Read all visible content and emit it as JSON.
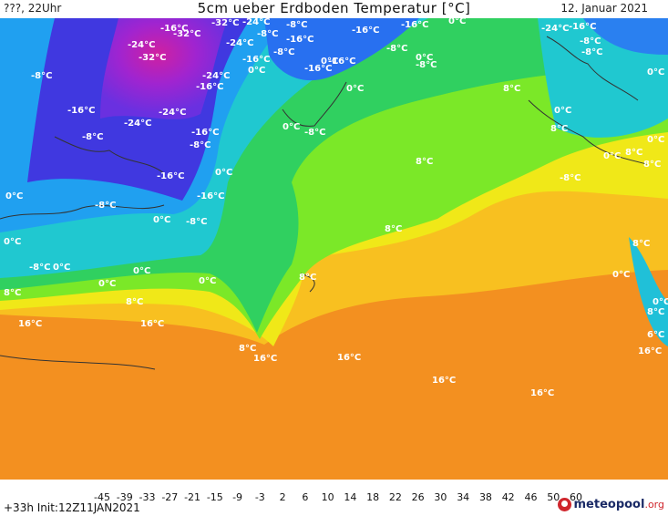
{
  "header": {
    "left": "???, 22Uhr",
    "title": "5cm ueber Erdboden Temperatur [°C]",
    "date": "12. Januar 2021"
  },
  "footer": {
    "run_info": "+33h Init:12Z11JAN2021",
    "brand_name": "meteopool",
    "brand_tld": ".org",
    "brand_icon": "meteopool-logo-icon"
  },
  "legend": {
    "ticks": [
      "-45",
      "-39",
      "-33",
      "-27",
      "-21",
      "-15",
      "-9",
      "-3",
      "2",
      "6",
      "10",
      "14",
      "18",
      "22",
      "26",
      "30",
      "34",
      "38",
      "42",
      "46",
      "50",
      "60"
    ]
  },
  "map_labels": [
    {
      "text": "-32°C"
    },
    {
      "text": "-24°C"
    },
    {
      "text": "-8°C"
    },
    {
      "text": "-16°C"
    },
    {
      "text": "-24°C"
    },
    {
      "text": "-32°C"
    },
    {
      "text": "-24°C"
    },
    {
      "text": "-16°C"
    },
    {
      "text": "-8°C"
    },
    {
      "text": "-16°C"
    },
    {
      "text": "-8°C"
    },
    {
      "text": "0°C"
    },
    {
      "text": "-16°C"
    },
    {
      "text": "-24°C"
    },
    {
      "text": "-32°C"
    },
    {
      "text": "-24°C"
    },
    {
      "text": "-16°C"
    },
    {
      "text": "-8°C"
    },
    {
      "text": "-16°C"
    },
    {
      "text": "-24°C"
    },
    {
      "text": "-16°C"
    },
    {
      "text": "-8°C"
    },
    {
      "text": "0°C"
    },
    {
      "text": "-16°C"
    },
    {
      "text": "-8°C"
    },
    {
      "text": "-16°C"
    },
    {
      "text": "-8°C"
    },
    {
      "text": "0°C"
    },
    {
      "text": "-8°C"
    },
    {
      "text": "0°C"
    },
    {
      "text": "0°C"
    },
    {
      "text": "-8°C"
    },
    {
      "text": "0°C"
    },
    {
      "text": "0°C"
    },
    {
      "text": "0°C"
    },
    {
      "text": "0°C"
    },
    {
      "text": "8°C"
    },
    {
      "text": "8°C"
    },
    {
      "text": "16°C"
    },
    {
      "text": "16°C"
    },
    {
      "text": "8°C"
    },
    {
      "text": "16°C"
    },
    {
      "text": "0°C"
    },
    {
      "text": "-16°C"
    },
    {
      "text": "-8°C"
    },
    {
      "text": "-16°C"
    },
    {
      "text": "-8°C"
    },
    {
      "text": "0°C"
    },
    {
      "text": "0°C"
    },
    {
      "text": "0°C"
    },
    {
      "text": "-8°C"
    },
    {
      "text": "0°C"
    },
    {
      "text": "-16°C"
    },
    {
      "text": "8°C"
    },
    {
      "text": "8°C"
    },
    {
      "text": "8°C"
    },
    {
      "text": "8°C"
    },
    {
      "text": "16°C"
    },
    {
      "text": "16°C"
    },
    {
      "text": "16°C"
    },
    {
      "text": "-24°C"
    },
    {
      "text": "-16°C"
    },
    {
      "text": "-8°C"
    },
    {
      "text": "-8°C"
    },
    {
      "text": "0°C"
    },
    {
      "text": "0°C"
    },
    {
      "text": "8°C"
    },
    {
      "text": "0°C"
    },
    {
      "text": "-8°C"
    },
    {
      "text": "0°C"
    },
    {
      "text": "8°C"
    },
    {
      "text": "8°C"
    },
    {
      "text": "0°C"
    },
    {
      "text": "8°C"
    },
    {
      "text": "0°C"
    },
    {
      "text": "8°C"
    },
    {
      "text": "6°C"
    },
    {
      "text": "16°C"
    }
  ]
}
